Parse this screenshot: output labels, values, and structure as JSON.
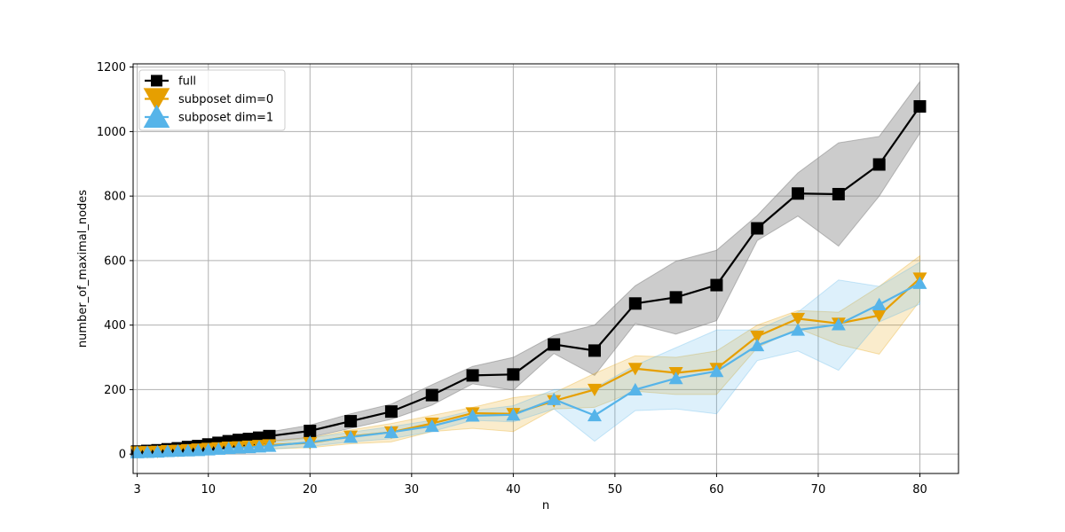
{
  "chart_data": {
    "type": "line",
    "title": "",
    "xlabel": "n",
    "ylabel": "number_of_maximal_nodes",
    "xlim": [
      2.6,
      83.8
    ],
    "ylim": [
      -60,
      1210
    ],
    "xticks": [
      3,
      10,
      20,
      30,
      40,
      50,
      60,
      70,
      80
    ],
    "xtick_labels": [
      "3",
      "10",
      "20",
      "30",
      "40",
      "50",
      "60",
      "70",
      "80"
    ],
    "yticks": [
      0,
      200,
      400,
      600,
      800,
      1000,
      1200
    ],
    "ytick_labels": [
      "0",
      "200",
      "400",
      "600",
      "800",
      "1000",
      "1200"
    ],
    "grid": true,
    "legend_position": "top-left",
    "x": [
      3,
      4,
      5,
      6,
      7,
      8,
      9,
      10,
      11,
      12,
      13,
      14,
      15,
      16,
      20,
      24,
      28,
      32,
      36,
      40,
      44,
      48,
      52,
      56,
      60,
      64,
      68,
      72,
      76,
      80
    ],
    "series": [
      {
        "name": "full",
        "color": "#000000",
        "band_color": "#7f7f7f",
        "marker": "square",
        "values": [
          8,
          10,
          12,
          15,
          18,
          22,
          25,
          30,
          35,
          40,
          44,
          47,
          51,
          56,
          72,
          102,
          132,
          183,
          244,
          247,
          340,
          321,
          467,
          486,
          524,
          700,
          808,
          806,
          898,
          1078
        ],
        "lower": [
          4,
          5,
          7,
          9,
          11,
          13,
          16,
          19,
          22,
          26,
          29,
          31,
          35,
          40,
          52,
          80,
          108,
          152,
          218,
          198,
          312,
          244,
          405,
          372,
          414,
          662,
          738,
          645,
          800,
          995
        ],
        "upper": [
          12,
          15,
          17,
          20,
          24,
          30,
          34,
          40,
          46,
          51,
          55,
          60,
          64,
          69,
          90,
          125,
          155,
          215,
          272,
          300,
          368,
          400,
          522,
          598,
          632,
          740,
          872,
          965,
          985,
          1155
        ]
      },
      {
        "name": "subposet dim=0",
        "color": "#e69f00",
        "band_color": "#e69f00",
        "marker": "triangle-down",
        "values": [
          6,
          7,
          8,
          10,
          11,
          13,
          15,
          17,
          19,
          21,
          22,
          24,
          26,
          28,
          35,
          55,
          68,
          95,
          127,
          125,
          165,
          200,
          265,
          252,
          265,
          365,
          420,
          405,
          430,
          545
        ],
        "lower": [
          2,
          3,
          4,
          5,
          6,
          7,
          8,
          9,
          10,
          11,
          12,
          13,
          14,
          16,
          20,
          32,
          38,
          70,
          80,
          70,
          140,
          145,
          195,
          185,
          185,
          330,
          390,
          340,
          310,
          475
        ],
        "upper": [
          10,
          11,
          12,
          14,
          16,
          19,
          22,
          25,
          28,
          30,
          32,
          34,
          36,
          40,
          50,
          75,
          95,
          120,
          145,
          175,
          190,
          250,
          305,
          300,
          320,
          400,
          445,
          440,
          520,
          615
        ]
      },
      {
        "name": "subposet dim=1",
        "color": "#56b4e9",
        "band_color": "#56b4e9",
        "marker": "triangle-up",
        "values": [
          5,
          6,
          7,
          9,
          10,
          11,
          12,
          14,
          16,
          18,
          20,
          21,
          23,
          25,
          37,
          53,
          68,
          87,
          119,
          122,
          170,
          120,
          200,
          235,
          257,
          337,
          385,
          402,
          464,
          530
        ],
        "lower": [
          2,
          2,
          3,
          4,
          5,
          6,
          7,
          8,
          9,
          10,
          11,
          12,
          13,
          15,
          24,
          38,
          48,
          70,
          105,
          100,
          140,
          40,
          135,
          140,
          125,
          290,
          320,
          260,
          410,
          465
        ],
        "upper": [
          9,
          10,
          11,
          13,
          15,
          17,
          18,
          20,
          23,
          26,
          28,
          30,
          33,
          36,
          50,
          68,
          85,
          105,
          135,
          150,
          200,
          205,
          275,
          330,
          385,
          385,
          440,
          540,
          520,
          595
        ]
      }
    ]
  }
}
